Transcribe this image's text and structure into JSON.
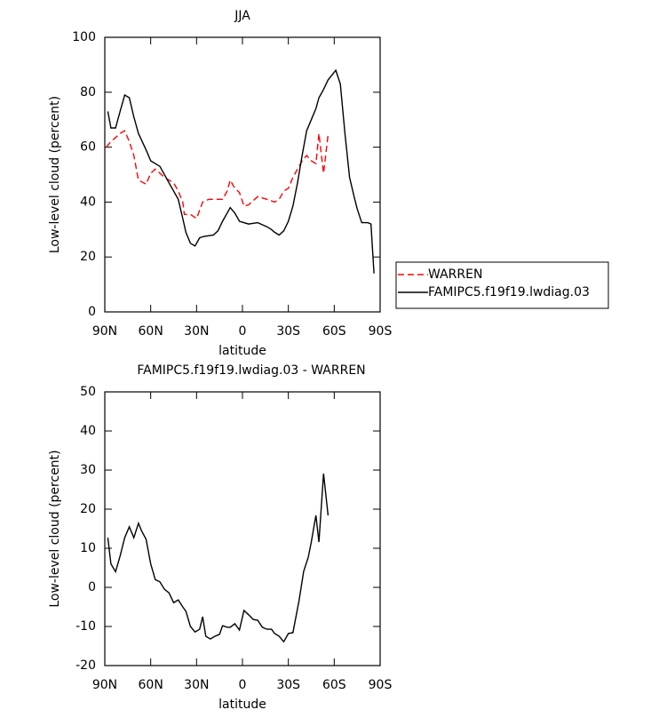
{
  "chart_data": [
    {
      "type": "line",
      "title": "JJA",
      "x_label": "latitude",
      "y_label": "Low-level cloud (percent)",
      "xlim": [
        90,
        -90
      ],
      "ylim": [
        0,
        100
      ],
      "xticks": [
        {
          "value": 90,
          "label": "90N"
        },
        {
          "value": 60,
          "label": "60N"
        },
        {
          "value": 30,
          "label": "30N"
        },
        0,
        {
          "value": -30,
          "label": "30S"
        },
        {
          "value": -60,
          "label": "60S"
        },
        {
          "value": -90,
          "label": "90S"
        }
      ],
      "yticks": [
        0,
        20,
        40,
        60,
        80,
        100
      ],
      "legend": "right",
      "series": [
        {
          "name": "WARREN",
          "color": "#ff0000",
          "linestyle": "dashed",
          "x": [
            89,
            86,
            83,
            80,
            77,
            74,
            71,
            68,
            63,
            60,
            57,
            51,
            45,
            42,
            39,
            38,
            34,
            30,
            26,
            22,
            16,
            13,
            10,
            8,
            5,
            2,
            -1,
            -4,
            -10,
            -16,
            -21,
            -24,
            -27,
            -30,
            -33,
            -36,
            -39,
            -42,
            -45,
            -48,
            -50,
            -53,
            -56
          ],
          "values": [
            60,
            62,
            63.5,
            65,
            66,
            62,
            57,
            48,
            46.5,
            50.5,
            52,
            49,
            47,
            44,
            40,
            35.5,
            35.5,
            34,
            40,
            41,
            41,
            41,
            44,
            48,
            45,
            43.5,
            38.5,
            39,
            42,
            41,
            40,
            41,
            44,
            45,
            49,
            52,
            55,
            57,
            55,
            54,
            65,
            50.5,
            64.5
          ]
        },
        {
          "name": "FAMIPC5.f19f19.lwdiag.03",
          "color": "#000000",
          "linestyle": "solid",
          "x": [
            88,
            86,
            83,
            80,
            77,
            74,
            71,
            68,
            63,
            60,
            54,
            48,
            42,
            39,
            37,
            34,
            31,
            28,
            25,
            19,
            16,
            13,
            10,
            8,
            5,
            2,
            -1,
            -4,
            -10,
            -16,
            -19,
            -21,
            -24,
            -27,
            -30,
            -33,
            -36,
            -39,
            -42,
            -45,
            -48,
            -50,
            -53,
            -56,
            -61,
            -64,
            -67,
            -70,
            -73,
            -75,
            -78,
            -82,
            -84,
            -86
          ],
          "values": [
            73,
            67,
            67,
            73,
            79,
            78,
            71,
            65,
            59,
            55,
            53,
            47,
            41,
            34,
            29,
            25,
            24,
            27,
            27.5,
            28,
            29.5,
            33,
            36,
            38,
            36,
            33,
            32.5,
            32,
            32.5,
            31,
            30,
            29,
            28,
            29.5,
            33,
            38.5,
            47,
            57,
            66,
            70,
            74,
            78,
            81,
            84.5,
            88,
            83,
            65,
            49,
            42,
            37.5,
            32.5,
            32.5,
            32,
            14
          ]
        }
      ]
    },
    {
      "type": "line",
      "title": "FAMIPC5.f19f19.lwdiag.03 - WARREN",
      "x_label": "latitude",
      "y_label": "Low-level cloud (percent)",
      "xlim": [
        90,
        -90
      ],
      "ylim": [
        -20,
        50
      ],
      "xticks": [
        {
          "value": 90,
          "label": "90N"
        },
        {
          "value": 60,
          "label": "60N"
        },
        {
          "value": 30,
          "label": "30N"
        },
        0,
        {
          "value": -30,
          "label": "30S"
        },
        {
          "value": -60,
          "label": "60S"
        },
        {
          "value": -90,
          "label": "90S"
        }
      ],
      "yticks": [
        -20,
        -10,
        0,
        10,
        20,
        30,
        40,
        50
      ],
      "series": [
        {
          "color": "#000000",
          "linestyle": "solid",
          "x": [
            88,
            86,
            83,
            80,
            77,
            74,
            71,
            68,
            66,
            63,
            60,
            57,
            54,
            51,
            48,
            45,
            42,
            39,
            37,
            34,
            31,
            28,
            26,
            24,
            21,
            18,
            15,
            13,
            10,
            8,
            5,
            2,
            -1,
            -4,
            -7,
            -10,
            -13,
            -16,
            -19,
            -21,
            -24,
            -27,
            -30,
            -33,
            -37,
            -40,
            -43,
            -45,
            -48,
            -50,
            -53,
            -56
          ],
          "values": [
            12.7,
            6,
            4,
            8,
            12.7,
            15.5,
            12.7,
            16.4,
            14.5,
            12.3,
            6,
            2,
            1.4,
            -0.5,
            -1.4,
            -3.9,
            -3.2,
            -5,
            -6.1,
            -10,
            -11.4,
            -10.7,
            -7.5,
            -12.5,
            -13.2,
            -12.5,
            -12,
            -9.8,
            -10.2,
            -10.2,
            -9.3,
            -10.9,
            -5.9,
            -7,
            -8.2,
            -8.4,
            -10.2,
            -10.7,
            -10.7,
            -11.8,
            -12.5,
            -13.9,
            -11.8,
            -11.6,
            -3.4,
            4.1,
            7.7,
            11.6,
            18.4,
            11.6,
            29.1,
            18.4
          ]
        }
      ]
    }
  ]
}
